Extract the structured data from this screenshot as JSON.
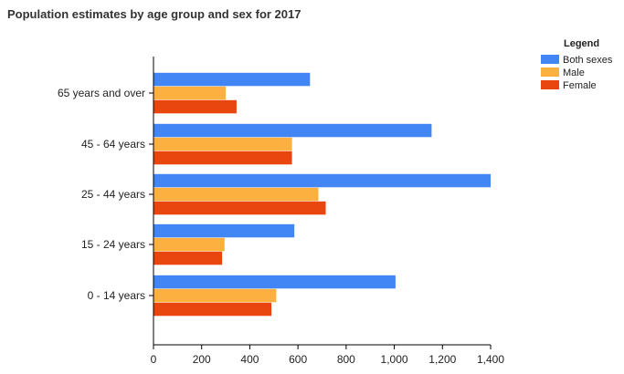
{
  "chart_data": {
    "type": "bar",
    "orientation": "horizontal",
    "title": "Population estimates by age group and sex for 2017",
    "categories": [
      "65 years and over",
      "45 - 64 years",
      "25 - 44 years",
      "15 - 24 years",
      "0 - 14 years"
    ],
    "series": [
      {
        "name": "Both sexes",
        "color": "#4285f4",
        "values": [
          650,
          1155,
          1400,
          585,
          1005
        ]
      },
      {
        "name": "Male",
        "color": "#fbb040",
        "values": [
          300,
          575,
          685,
          295,
          510
        ]
      },
      {
        "name": "Female",
        "color": "#e8450f",
        "values": [
          345,
          575,
          715,
          285,
          490
        ]
      }
    ],
    "xlim": [
      0,
      1400
    ],
    "x_ticks": [
      0,
      200,
      400,
      600,
      800,
      1000,
      1200,
      1400
    ],
    "x_tick_labels": [
      "0",
      "200",
      "400",
      "600",
      "800",
      "1,000",
      "1,200",
      "1,400"
    ],
    "xlabel": "",
    "ylabel": "",
    "grid": false,
    "legend": {
      "title": "Legend",
      "position": "top-right"
    }
  }
}
